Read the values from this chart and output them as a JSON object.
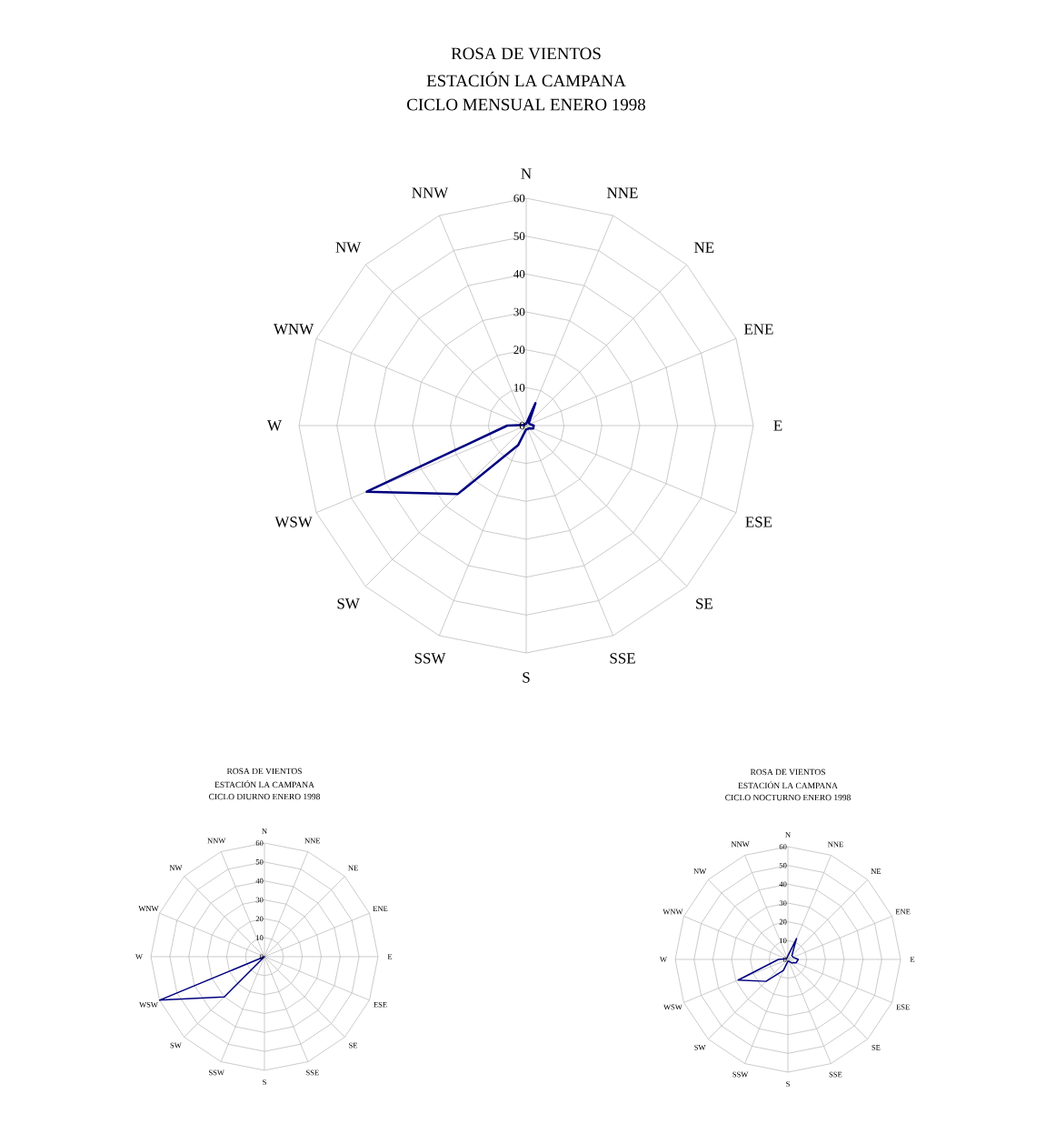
{
  "chart_data": [
    {
      "type": "radar",
      "title": "ROSA DE VIENTOS",
      "subtitle": "ESTACIÓN LA CAMPANA",
      "annotations": [
        "CICLO MENSUAL ENERO 1998"
      ],
      "categories": [
        "N",
        "NNE",
        "NE",
        "ENE",
        "E",
        "ESE",
        "SE",
        "SSE",
        "S",
        "SSW",
        "SW",
        "WSW",
        "W",
        "WNW",
        "NW",
        "NNW"
      ],
      "series": [
        {
          "color": "#000080",
          "values": [
            0.5,
            6.4,
            1,
            1,
            2,
            2,
            1,
            1,
            1,
            5.6,
            25.5,
            45.6,
            5,
            0.5,
            0.5,
            0.5
          ]
        }
      ],
      "ylim": [
        0,
        60
      ],
      "yticks": [
        0,
        10,
        20,
        30,
        40,
        50,
        60
      ],
      "grid": true
    },
    {
      "type": "radar",
      "title": "ROSA DE VIENTOS",
      "subtitle": "ESTACIÓN LA CAMPANA",
      "annotations": [
        "CICLO DIURNO ENERO 1998"
      ],
      "categories": [
        "N",
        "NNE",
        "NE",
        "ENE",
        "E",
        "ESE",
        "SE",
        "SSE",
        "S",
        "SSW",
        "SW",
        "WSW",
        "W",
        "WNW",
        "NW",
        "NNW"
      ],
      "series": [
        {
          "color": "#000080",
          "values": [
            0,
            0,
            0,
            0,
            0,
            0,
            0,
            0,
            0,
            0,
            30,
            60,
            0,
            0,
            0,
            0
          ]
        }
      ],
      "ylim": [
        0,
        60
      ],
      "yticks": [
        0,
        10,
        20,
        30,
        40,
        50,
        60
      ],
      "grid": true
    },
    {
      "type": "radar",
      "title": "ROSA DE VIENTOS",
      "subtitle": "ESTACIÓN LA CAMPANA",
      "annotations": [
        "CICLO NOCTURNO ENERO 1998"
      ],
      "categories": [
        "N",
        "NNE",
        "NE",
        "ENE",
        "E",
        "ESE",
        "SE",
        "SSE",
        "S",
        "SSW",
        "SW",
        "WSW",
        "W",
        "WNW",
        "NW",
        "NNW"
      ],
      "series": [
        {
          "color": "#000080",
          "values": [
            2,
            12,
            3,
            3,
            5.5,
            4.7,
            2.5,
            1,
            1,
            6.3,
            16.5,
            28.7,
            5,
            1,
            1,
            1
          ]
        }
      ],
      "ylim": [
        0,
        60
      ],
      "yticks": [
        0,
        10,
        20,
        30,
        40,
        50,
        60
      ],
      "grid": true
    }
  ]
}
